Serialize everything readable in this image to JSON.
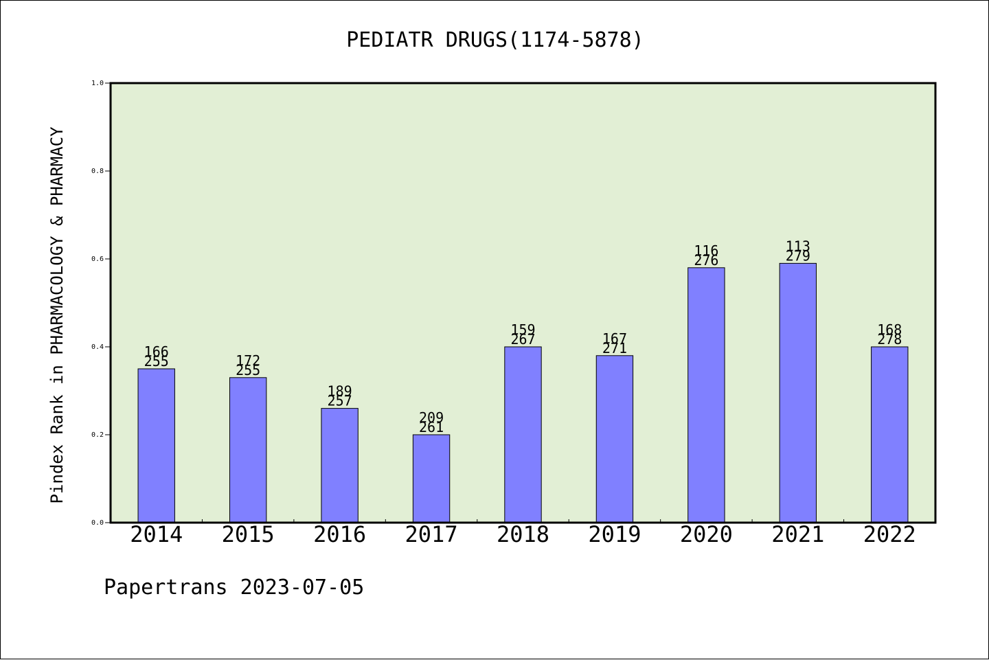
{
  "footer": {
    "credit": "Papertrans 2023-07-05"
  },
  "chart_data": {
    "type": "bar",
    "title": "PEDIATR DRUGS(1174-5878)",
    "xlabel": "",
    "ylabel": "Pindex Rank in PHARMACOLOGY & PHARMACY",
    "categories": [
      "2014",
      "2015",
      "2016",
      "2017",
      "2018",
      "2019",
      "2020",
      "2021",
      "2022"
    ],
    "values": [
      0.35,
      0.33,
      0.26,
      0.2,
      0.4,
      0.38,
      0.58,
      0.59,
      0.4
    ],
    "bar_labels_top": [
      "166",
      "172",
      "189",
      "209",
      "159",
      "167",
      "116",
      "113",
      "168"
    ],
    "bar_labels_bottom": [
      "255",
      "255",
      "257",
      "261",
      "267",
      "271",
      "276",
      "279",
      "278"
    ],
    "ylim": [
      0,
      1.0
    ],
    "yticks": [
      "0.0",
      "0.2",
      "0.4",
      "0.6",
      "0.8",
      "1.0"
    ],
    "grid": false,
    "colors": {
      "bar": "#8080ff",
      "plot_background": "#e2efd5",
      "axis": "#000000"
    }
  }
}
